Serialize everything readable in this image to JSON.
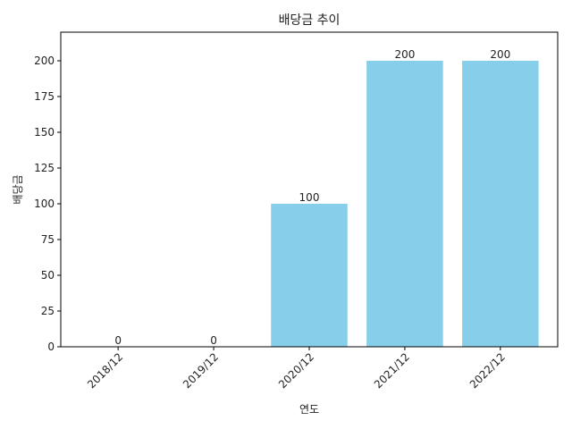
{
  "chart_data": {
    "type": "bar",
    "title": "배당금 추이",
    "xlabel": "연도",
    "ylabel": "배당금",
    "categories": [
      "2018/12",
      "2019/12",
      "2020/12",
      "2021/12",
      "2022/12"
    ],
    "values": [
      0,
      0,
      100,
      200,
      200
    ],
    "ylim": [
      0,
      220
    ],
    "yticks": [
      0,
      25,
      50,
      75,
      100,
      125,
      150,
      175,
      200
    ],
    "bar_color": "#87CEEB",
    "show_data_labels": true,
    "grid": false,
    "legend": "none"
  }
}
